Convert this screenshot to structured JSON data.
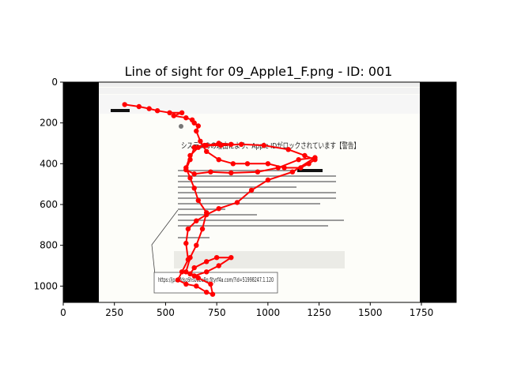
{
  "chart_data": {
    "type": "scatter",
    "title": "Line of sight for 09_Apple1_F.png - ID: 001",
    "xlabel": "",
    "ylabel": "",
    "xlim": [
      0,
      1920
    ],
    "ylim": [
      1080,
      0
    ],
    "x_ticks": [
      0,
      250,
      500,
      750,
      1000,
      1250,
      1500,
      1750
    ],
    "y_ticks": [
      0,
      200,
      400,
      600,
      800,
      1000
    ],
    "series_color": "#ff0000",
    "background_image": {
      "description_elements": {
        "phishing_heading": "システムのの理由により、Apple IDがロックされています【警告】",
        "url_tooltip": "https://jpahfdsc6hs0obu9g.fjtyrf4a.com/?id=51998247.1.120"
      }
    },
    "gaze_path": [
      [
        300,
        110
      ],
      [
        370,
        120
      ],
      [
        420,
        130
      ],
      [
        460,
        140
      ],
      [
        520,
        150
      ],
      [
        580,
        150
      ],
      [
        540,
        165
      ],
      [
        600,
        175
      ],
      [
        630,
        185
      ],
      [
        640,
        200
      ],
      [
        660,
        215
      ],
      [
        650,
        240
      ],
      [
        670,
        290
      ],
      [
        700,
        340
      ],
      [
        760,
        380
      ],
      [
        830,
        400
      ],
      [
        900,
        400
      ],
      [
        1000,
        400
      ],
      [
        1080,
        420
      ],
      [
        1160,
        420
      ],
      [
        1200,
        400
      ],
      [
        1230,
        380
      ],
      [
        1180,
        360
      ],
      [
        1100,
        330
      ],
      [
        980,
        310
      ],
      [
        870,
        305
      ],
      [
        770,
        310
      ],
      [
        690,
        310
      ],
      [
        640,
        320
      ],
      [
        620,
        380
      ],
      [
        600,
        430
      ],
      [
        640,
        450
      ],
      [
        720,
        440
      ],
      [
        820,
        445
      ],
      [
        950,
        440
      ],
      [
        1050,
        420
      ],
      [
        1150,
        380
      ],
      [
        1230,
        370
      ],
      [
        1120,
        440
      ],
      [
        1000,
        480
      ],
      [
        920,
        530
      ],
      [
        850,
        590
      ],
      [
        760,
        620
      ],
      [
        700,
        650
      ],
      [
        650,
        680
      ],
      [
        610,
        720
      ],
      [
        600,
        790
      ],
      [
        610,
        870
      ],
      [
        580,
        930
      ],
      [
        560,
        970
      ],
      [
        600,
        990
      ],
      [
        650,
        1000
      ],
      [
        700,
        1030
      ],
      [
        730,
        1040
      ],
      [
        720,
        990
      ],
      [
        660,
        960
      ],
      [
        620,
        940
      ],
      [
        640,
        910
      ],
      [
        700,
        880
      ],
      [
        750,
        860
      ],
      [
        820,
        860
      ],
      [
        760,
        900
      ],
      [
        700,
        930
      ],
      [
        640,
        950
      ],
      [
        600,
        930
      ],
      [
        620,
        860
      ],
      [
        650,
        800
      ],
      [
        680,
        720
      ],
      [
        700,
        640
      ],
      [
        660,
        580
      ],
      [
        640,
        520
      ],
      [
        620,
        470
      ],
      [
        600,
        420
      ],
      [
        620,
        360
      ],
      [
        660,
        320
      ],
      [
        700,
        310
      ],
      [
        760,
        300
      ],
      [
        820,
        305
      ]
    ]
  }
}
